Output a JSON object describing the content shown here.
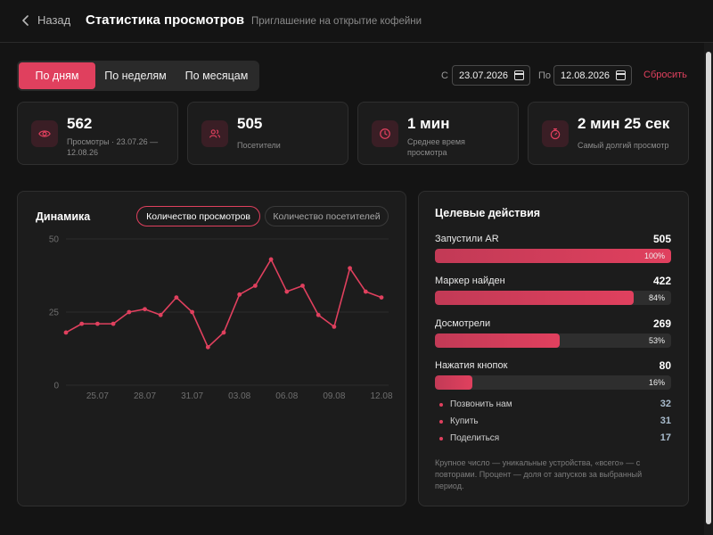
{
  "header": {
    "back_label": "Назад",
    "title": "Статистика просмотров",
    "subtitle": "Приглашение на открытие кофейни"
  },
  "period_tabs": [
    {
      "label": "По дням",
      "active": true
    },
    {
      "label": "По неделям",
      "active": false
    },
    {
      "label": "По месяцам",
      "active": false
    }
  ],
  "date_range": {
    "from_label": "С",
    "from_value": "23.07.2026",
    "to_label": "По",
    "to_value": "12.08.2026",
    "reset_label": "Сбросить"
  },
  "stats": [
    {
      "icon": "eye-icon",
      "value": "562",
      "label": "Просмотры · 23.07.26 — 12.08.26"
    },
    {
      "icon": "users-icon",
      "value": "505",
      "label": "Посетители"
    },
    {
      "icon": "clock-icon",
      "value": "1 мин",
      "label": "Среднее время просмотра"
    },
    {
      "icon": "stopwatch-icon",
      "value": "2 мин 25 сек",
      "label": "Самый долгий просмотр"
    }
  ],
  "dynamics": {
    "title": "Динамика",
    "toggle": [
      {
        "label": "Количество просмотров",
        "active": true
      },
      {
        "label": "Количество посетителей",
        "active": false
      }
    ]
  },
  "chart_data": {
    "type": "line",
    "title": "",
    "xlabel": "",
    "ylabel": "",
    "ylim": [
      0,
      50
    ],
    "yticks": [
      0,
      25,
      50
    ],
    "x": [
      "23.07",
      "24.07",
      "25.07",
      "26.07",
      "27.07",
      "28.07",
      "29.07",
      "30.07",
      "31.07",
      "01.08",
      "02.08",
      "03.08",
      "04.08",
      "05.08",
      "06.08",
      "07.08",
      "08.08",
      "09.08",
      "10.08",
      "11.08",
      "12.08"
    ],
    "xtick_labels": [
      "25.07",
      "28.07",
      "31.07",
      "03.08",
      "06.08",
      "09.08",
      "12.08"
    ],
    "series": [
      {
        "values": [
          18,
          21,
          21,
          21,
          25,
          26,
          24,
          30,
          25,
          13,
          18,
          31,
          34,
          43,
          32,
          34,
          24,
          20,
          40,
          32,
          30
        ],
        "color": "#e0405e"
      }
    ],
    "grid": true
  },
  "actions": {
    "title": "Целевые действия",
    "items": [
      {
        "label": "Запустили AR",
        "value": "505",
        "percent": 100,
        "percent_label": "100%"
      },
      {
        "label": "Маркер найден",
        "value": "422",
        "percent": 84,
        "percent_label": "84%"
      },
      {
        "label": "Досмотрели",
        "value": "269",
        "percent": 53,
        "percent_label": "53%"
      },
      {
        "label": "Нажатия кнопок",
        "value": "80",
        "percent": 16,
        "percent_label": "16%"
      }
    ],
    "buttons": [
      {
        "label": "Позвонить нам",
        "value": "32"
      },
      {
        "label": "Купить",
        "value": "31"
      },
      {
        "label": "Поделиться",
        "value": "17"
      }
    ],
    "note": "Крупное число — уникальные устройства, «всего» — с повторами. Процент — доля от запусков за выбранный период."
  },
  "colors": {
    "accent": "#e0405e",
    "background": "#141414",
    "card": "#1c1c1c",
    "secondary_value": "#a9bccd"
  }
}
